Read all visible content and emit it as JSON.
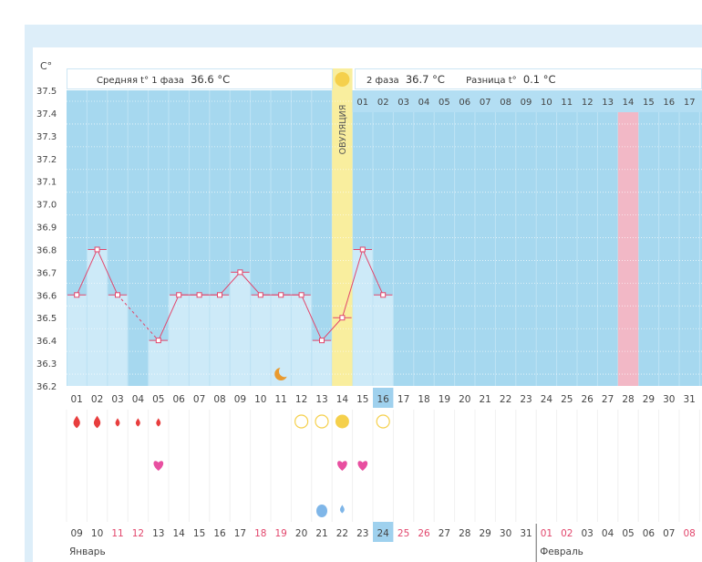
{
  "temp_unit": "C°",
  "phase1": {
    "label": "Средняя t° 1 фаза",
    "value": "36.6 °C"
  },
  "phase2": {
    "label": "2 фаза",
    "value": "36.7 °C",
    "diff_label": "Разница t°",
    "diff_value": "0.1 °C"
  },
  "ovulation_label": "ОВУЛЯЦИЯ",
  "y_ticks": [
    "37.5",
    "37.4",
    "37.3",
    "37.2",
    "37.1",
    "37.0",
    "36.9",
    "36.8",
    "36.7",
    "36.6",
    "36.5",
    "36.4",
    "36.3",
    "36.2"
  ],
  "cycle_days": [
    "01",
    "02",
    "03",
    "04",
    "05",
    "06",
    "07",
    "08",
    "09",
    "10",
    "11",
    "12",
    "13",
    "14",
    "15",
    "16",
    "17",
    "18",
    "19",
    "20",
    "21",
    "22",
    "23",
    "24",
    "25",
    "26",
    "27",
    "28",
    "29",
    "30",
    "31"
  ],
  "phase2_days": [
    "01",
    "02",
    "03",
    "04",
    "05",
    "06",
    "07",
    "08",
    "09",
    "10",
    "11",
    "12",
    "13",
    "14",
    "15",
    "16",
    "17"
  ],
  "current_cycle_day": "16",
  "ovulation_day": 14,
  "phase2_marked_day": "14",
  "temperatures": [
    36.6,
    36.8,
    36.6,
    null,
    36.4,
    36.6,
    36.6,
    36.6,
    36.7,
    36.6,
    36.6,
    36.6,
    36.4,
    36.5,
    36.8,
    36.6
  ],
  "moon_day": 11,
  "bleeding": [
    {
      "day": 1,
      "level": "heavy"
    },
    {
      "day": 2,
      "level": "heavy"
    },
    {
      "day": 3,
      "level": "medium"
    },
    {
      "day": 4,
      "level": "medium"
    },
    {
      "day": 5,
      "level": "medium"
    }
  ],
  "ovulation_test": [
    {
      "day": 12,
      "result": "negative"
    },
    {
      "day": 13,
      "result": "negative"
    },
    {
      "day": 14,
      "result": "positive"
    },
    {
      "day": 16,
      "result": "negative"
    }
  ],
  "intercourse_days": [
    5,
    14,
    15
  ],
  "discharge": [
    {
      "day": 13,
      "type": "drop"
    },
    {
      "day": 14,
      "type": "drop-small"
    }
  ],
  "dates": [
    "09",
    "10",
    "11",
    "12",
    "13",
    "14",
    "15",
    "16",
    "17",
    "18",
    "19",
    "20",
    "21",
    "22",
    "23",
    "24",
    "25",
    "26",
    "27",
    "28",
    "29",
    "30",
    "31",
    "01",
    "02",
    "03",
    "04",
    "05",
    "06",
    "07",
    "08"
  ],
  "weekend_date_indices": [
    2,
    3,
    9,
    10,
    16,
    17,
    23,
    24,
    30
  ],
  "today_date_index": 15,
  "month_jan": "Январь",
  "month_feb": "Февраль",
  "colors": {
    "grid": "#a6d8ef",
    "bar": "#cdeaf8",
    "ovulation": "#f9ee9e",
    "ovulation_mark": "#f5d04c",
    "pink": "#f2b8c6",
    "line": "#e2466c",
    "drop": "#e83e3e",
    "heart": "#e84fa0",
    "moon": "#e99a2f",
    "discharge": "#7fb6e8",
    "today": "#9fd1ee",
    "weekend": "#e2466c"
  }
}
